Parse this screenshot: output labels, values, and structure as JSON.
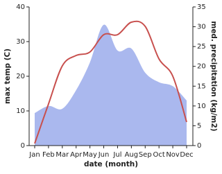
{
  "chart_data": {
    "type": "line",
    "x_label": "date (month)",
    "y_label": "max temp (C)",
    "y2_label": "med. precipitation (kg/m2)",
    "categories": [
      "Jan",
      "Feb",
      "Mar",
      "Apr",
      "May",
      "Jun",
      "Jul",
      "Aug",
      "Sep",
      "Oct",
      "Nov",
      "Dec"
    ],
    "series": [
      {
        "type": "area",
        "axis": "y2",
        "color": "#aab8ee",
        "values": [
          8.2,
          10,
          9.3,
          14,
          21,
          30.5,
          24,
          24.5,
          18.4,
          16,
          15,
          11.4
        ]
      },
      {
        "type": "line",
        "color": "#c8504e",
        "values": [
          0.6,
          12,
          23,
          26,
          27,
          32,
          32,
          35.6,
          34.4,
          25,
          20,
          6.8
        ]
      }
    ],
    "ylim": [
      0,
      40
    ],
    "yticks": [
      0,
      10,
      20,
      30,
      40
    ],
    "y2lim": [
      0,
      35
    ],
    "y2ticks": [
      0,
      5,
      10,
      15,
      20,
      25,
      30,
      35
    ]
  }
}
